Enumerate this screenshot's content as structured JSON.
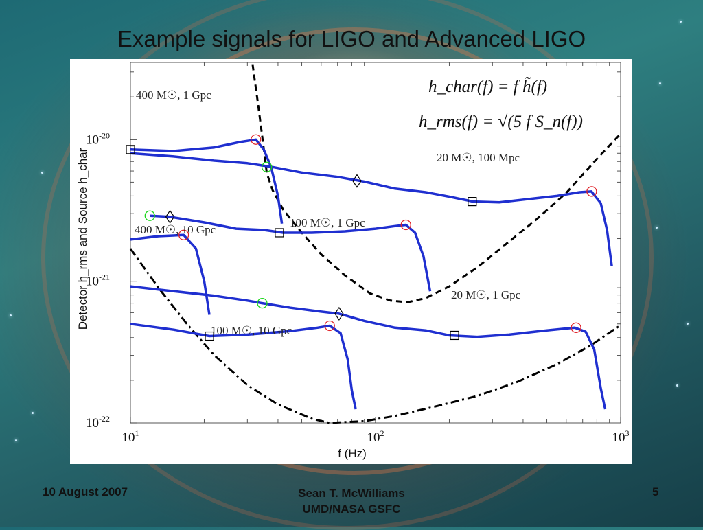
{
  "slide": {
    "title": "Example signals for LIGO and Advanced LIGO",
    "footer_date": "10 August 2007",
    "footer_author_line1": "Sean T. McWilliams",
    "footer_author_line2": "UMD/NASA GSFC",
    "page_number": "5"
  },
  "colors": {
    "signal": "#1f2fd0",
    "noise": "#000000",
    "isco_marker": "#e0242a",
    "ligo_band_marker": "#19d619",
    "marker": "#000000"
  },
  "chart_data": {
    "type": "line",
    "xlabel": "f (Hz)",
    "ylabel": "Detector h_rms and Source h_char",
    "xscale": "log",
    "yscale": "log",
    "xlim": [
      10,
      1000
    ],
    "ylim": [
      1e-22,
      3.5e-20
    ],
    "x_ticks": [
      {
        "base": "10",
        "exp": "1"
      },
      {
        "base": "10",
        "exp": "2"
      },
      {
        "base": "10",
        "exp": "3"
      }
    ],
    "y_ticks": [
      {
        "base": "10",
        "exp": "-22"
      },
      {
        "base": "10",
        "exp": "-21"
      },
      {
        "base": "10",
        "exp": "-20"
      }
    ],
    "equation_1": "h_char(f) = f h̃(f)",
    "equation_2": "h_rms(f) = √(5 f S_n(f))",
    "noise_curves": [
      {
        "style": "dashed",
        "points": [
          [
            31.5,
            3.4e-20
          ],
          [
            33,
            1.9e-20
          ],
          [
            34.5,
            1.05e-20
          ],
          [
            36,
            5.8e-21
          ],
          [
            38,
            4.4e-21
          ],
          [
            42,
            3.2e-21
          ],
          [
            50,
            2.2e-21
          ],
          [
            60,
            1.55e-21
          ],
          [
            75,
            1.1e-21
          ],
          [
            95,
            8.2e-22
          ],
          [
            115,
            7.3e-22
          ],
          [
            135,
            7.1e-22
          ],
          [
            160,
            7.6e-22
          ],
          [
            200,
            9.2e-22
          ],
          [
            260,
            1.25e-21
          ],
          [
            350,
            1.9e-21
          ],
          [
            450,
            2.7e-21
          ],
          [
            600,
            4.2e-21
          ],
          [
            800,
            7.3e-21
          ],
          [
            1000,
            1.1e-20
          ]
        ]
      },
      {
        "style": "dashdot",
        "points": [
          [
            10,
            1.7e-21
          ],
          [
            13,
            9e-22
          ],
          [
            17,
            5e-22
          ],
          [
            22,
            3e-22
          ],
          [
            30,
            1.85e-22
          ],
          [
            40,
            1.35e-22
          ],
          [
            55,
            1.07e-22
          ],
          [
            65,
            1e-22
          ],
          [
            90,
            1.03e-22
          ],
          [
            120,
            1.12e-22
          ],
          [
            180,
            1.32e-22
          ],
          [
            260,
            1.55e-22
          ],
          [
            380,
            1.95e-22
          ],
          [
            550,
            2.6e-22
          ],
          [
            750,
            3.5e-22
          ],
          [
            1000,
            4.9e-22
          ]
        ]
      }
    ],
    "series": [
      {
        "label": "400 M☉, 1 Gpc",
        "points": [
          [
            10,
            8.5e-21
          ],
          [
            15,
            8.3e-21
          ],
          [
            22,
            8.8e-21
          ],
          [
            28,
            9.6e-21
          ],
          [
            32.5,
            1e-20
          ],
          [
            35,
            8.5e-21
          ],
          [
            37.5,
            6.4e-21
          ],
          [
            40,
            4e-21
          ],
          [
            41.5,
            2.55e-21
          ]
        ],
        "markers": [
          {
            "shape": "square",
            "x": 10,
            "y": 8.5e-21
          },
          {
            "shape": "circle",
            "color": "red",
            "x": 32.5,
            "y": 1e-20
          }
        ]
      },
      {
        "label": "20 M☉, 100 Mpc",
        "points": [
          [
            10,
            8e-21
          ],
          [
            15,
            7.6e-21
          ],
          [
            22,
            7.1e-21
          ],
          [
            30,
            6.8e-21
          ],
          [
            38,
            6.4e-21
          ],
          [
            50,
            5.85e-21
          ],
          [
            70,
            5.45e-21
          ],
          [
            90,
            5.05e-21
          ],
          [
            120,
            4.5e-21
          ],
          [
            160,
            4.25e-21
          ],
          [
            200,
            3.95e-21
          ],
          [
            250,
            3.65e-21
          ],
          [
            320,
            3.6e-21
          ],
          [
            420,
            3.8e-21
          ],
          [
            550,
            4e-21
          ],
          [
            680,
            4.25e-21
          ],
          [
            760,
            4.3e-21
          ],
          [
            830,
            3.55e-21
          ],
          [
            880,
            2.3e-21
          ],
          [
            920,
            1.28e-21
          ]
        ],
        "markers": [
          {
            "shape": "circle",
            "color": "green",
            "x": 36,
            "y": 6.4e-21
          },
          {
            "shape": "diamond",
            "x": 84,
            "y": 5.1e-21
          },
          {
            "shape": "square",
            "x": 248,
            "y": 3.65e-21
          },
          {
            "shape": "circle",
            "color": "red",
            "x": 762,
            "y": 4.3e-21
          }
        ]
      },
      {
        "label": "100 M☉, 1 Gpc",
        "points": [
          [
            12,
            2.9e-21
          ],
          [
            14.5,
            2.85e-21
          ],
          [
            20,
            2.6e-21
          ],
          [
            27,
            2.35e-21
          ],
          [
            35,
            2.3e-21
          ],
          [
            42,
            2.2e-21
          ],
          [
            55,
            2.2e-21
          ],
          [
            75,
            2.25e-21
          ],
          [
            100,
            2.35e-21
          ],
          [
            120,
            2.45e-21
          ],
          [
            133,
            2.5e-21
          ],
          [
            145,
            2.2e-21
          ],
          [
            157,
            1.5e-21
          ],
          [
            167,
            8.5e-22
          ]
        ],
        "markers": [
          {
            "shape": "circle",
            "color": "green",
            "x": 12,
            "y": 2.9e-21
          },
          {
            "shape": "diamond",
            "x": 14.5,
            "y": 2.85e-21
          },
          {
            "shape": "square",
            "x": 40.5,
            "y": 2.2e-21
          },
          {
            "shape": "circle",
            "color": "red",
            "x": 133,
            "y": 2.5e-21
          }
        ]
      },
      {
        "label": "400 M☉, 10 Gpc",
        "points": [
          [
            10,
            1.97e-21
          ],
          [
            13,
            2.08e-21
          ],
          [
            16.5,
            2.12e-21
          ],
          [
            18.5,
            1.7e-21
          ],
          [
            20,
            1e-21
          ],
          [
            21,
            5.8e-22
          ]
        ],
        "markers": [
          {
            "shape": "circle",
            "color": "red",
            "x": 16.5,
            "y": 2.12e-21
          }
        ]
      },
      {
        "label": "20 M☉, 1 Gpc",
        "points": [
          [
            10,
            9.2e-22
          ],
          [
            15,
            8.5e-22
          ],
          [
            22,
            7.9e-22
          ],
          [
            30,
            7.3e-22
          ],
          [
            34.5,
            7e-22
          ],
          [
            45,
            6.5e-22
          ],
          [
            60,
            6.1e-22
          ],
          [
            71,
            5.9e-22
          ],
          [
            90,
            5.25e-22
          ],
          [
            120,
            4.7e-22
          ],
          [
            160,
            4.5e-22
          ],
          [
            200,
            4.15e-22
          ],
          [
            260,
            4.05e-22
          ],
          [
            350,
            4.2e-22
          ],
          [
            500,
            4.5e-22
          ],
          [
            650,
            4.7e-22
          ],
          [
            720,
            4.4e-22
          ],
          [
            780,
            3.3e-22
          ],
          [
            830,
            1.75e-22
          ],
          [
            865,
            1.25e-22
          ]
        ],
        "markers": [
          {
            "shape": "circle",
            "color": "green",
            "x": 34.5,
            "y": 7e-22
          },
          {
            "shape": "diamond",
            "x": 71,
            "y": 5.9e-22
          },
          {
            "shape": "square",
            "x": 210,
            "y": 4.15e-22
          },
          {
            "shape": "circle",
            "color": "red",
            "x": 658,
            "y": 4.7e-22
          }
        ]
      },
      {
        "label": "100 M☉, 10 Gpc",
        "points": [
          [
            10,
            5e-22
          ],
          [
            15,
            4.55e-22
          ],
          [
            21,
            4.1e-22
          ],
          [
            30,
            4.2e-22
          ],
          [
            45,
            4.45e-22
          ],
          [
            58,
            4.7e-22
          ],
          [
            65,
            4.85e-22
          ],
          [
            72,
            4.3e-22
          ],
          [
            77,
            2.8e-22
          ],
          [
            80,
            1.7e-22
          ],
          [
            83,
            1.25e-22
          ]
        ],
        "markers": [
          {
            "shape": "square",
            "x": 21,
            "y": 4.1e-22
          },
          {
            "shape": "circle",
            "color": "red",
            "x": 65,
            "y": 4.85e-22
          }
        ]
      }
    ]
  }
}
